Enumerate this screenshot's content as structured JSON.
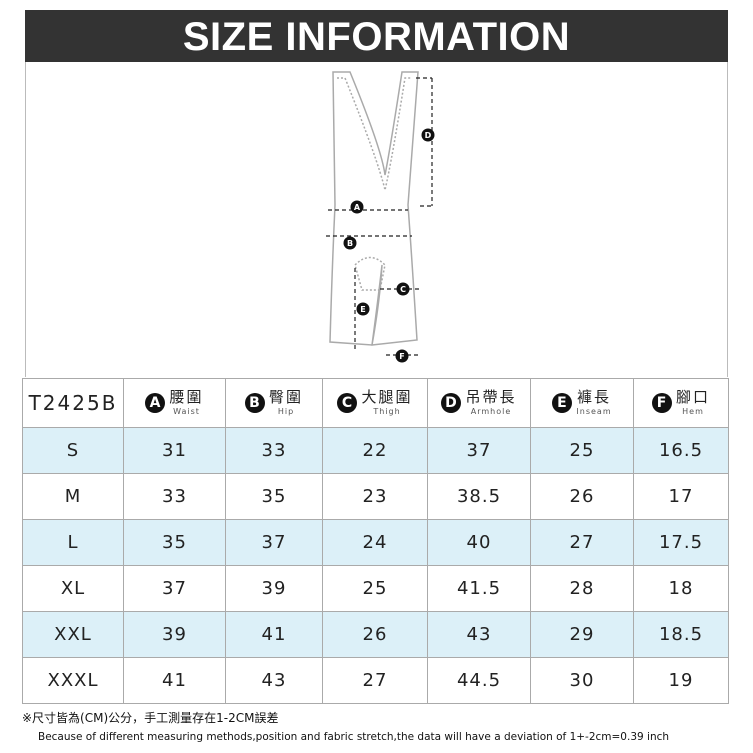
{
  "header": {
    "title": "SIZE INFORMATION"
  },
  "diagram": {
    "labels": [
      "A",
      "B",
      "C",
      "D",
      "E",
      "F"
    ]
  },
  "table": {
    "model": "T2425B",
    "columns": [
      {
        "badge": "A",
        "name": "腰圍",
        "en": "Waist"
      },
      {
        "badge": "B",
        "name": "臀圍",
        "en": "Hip"
      },
      {
        "badge": "C",
        "name": "大腿圍",
        "en": "Thigh"
      },
      {
        "badge": "D",
        "name": "吊帶長",
        "en": "Armhole"
      },
      {
        "badge": "E",
        "name": "褲長",
        "en": "Inseam"
      },
      {
        "badge": "F",
        "name": "腳口",
        "en": "Hem"
      }
    ],
    "rows": [
      [
        "S",
        31,
        33,
        22,
        37,
        25,
        16.5
      ],
      [
        "M",
        33,
        35,
        23,
        38.5,
        26,
        17
      ],
      [
        "L",
        35,
        37,
        24,
        40,
        27,
        17.5
      ],
      [
        "XL",
        37,
        39,
        25,
        41.5,
        28,
        18
      ],
      [
        "XXL",
        39,
        41,
        26,
        43,
        29,
        18.5
      ],
      [
        "XXXL",
        41,
        43,
        27,
        44.5,
        30,
        19
      ]
    ]
  },
  "notes": [
    "※尺寸皆為(CM)公分，手工測量存在1-2CM誤差",
    "Because of different measuring methods,position and fabric stretch,the data will have a deviation of 1+-2cm=0.39 inch"
  ]
}
